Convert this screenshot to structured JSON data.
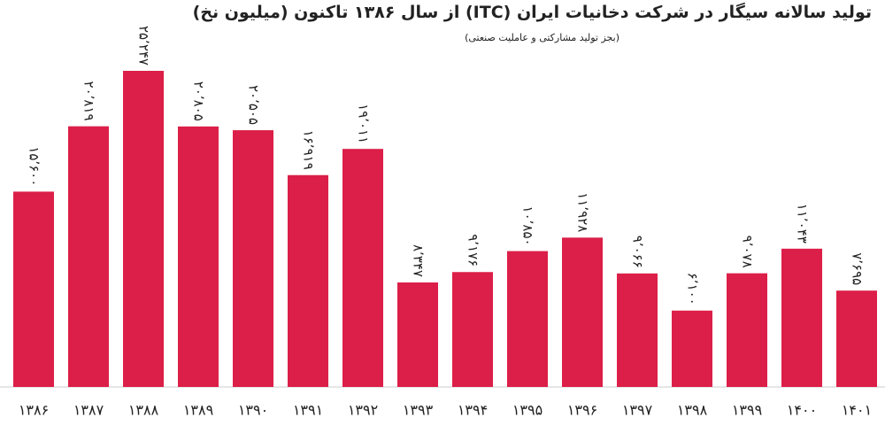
{
  "chart_data": {
    "type": "bar",
    "title": "تولید سالانه سیگار در شرکت دخانیات ایران (ITC) از سال ۱۳۸۶ تاکنون (میلیون نخ)",
    "subtitle": "(بجز تولید مشارکتی و عاملیت صنعتی)",
    "categories": [
      "۱۳۸۶",
      "۱۳۸۷",
      "۱۳۸۸",
      "۱۳۸۹",
      "۱۳۹۰",
      "۱۳۹۱",
      "۱۳۹۲",
      "۱۳۹۳",
      "۱۳۹۴",
      "۱۳۹۵",
      "۱۳۹۶",
      "۱۳۹۷",
      "۱۳۹۸",
      "۱۳۹۹",
      "۱۴۰۰",
      "۱۴۰۱"
    ],
    "values": [
      15600,
      20819,
      25247,
      20805,
      20505,
      16919,
      19011,
      8347,
      9176,
      10850,
      11928,
      9066,
      6100,
      9078,
      11043,
      7695
    ],
    "value_labels": [
      "۱۵٬۶۰۰",
      "۲۰٬۸۱۹",
      "۲۵٬۲۴۷",
      "۲۰٬۸۰۵",
      "۲۰٬۵۰۵",
      "۱۶٬۹۱۹",
      "۱۹٬۰۱۱",
      "۸٬۳۴۷",
      "۹٬۱۷۶",
      "۱۰٬۸۵۰",
      "۱۱٬۹۲۸",
      "۹٬۰۶۶",
      "۶٬۱۰۰",
      "۹٬۰۷۸",
      "۱۱٬۰۴۳",
      "۷٬۶۹۵"
    ],
    "color": "#dc1f48"
  }
}
